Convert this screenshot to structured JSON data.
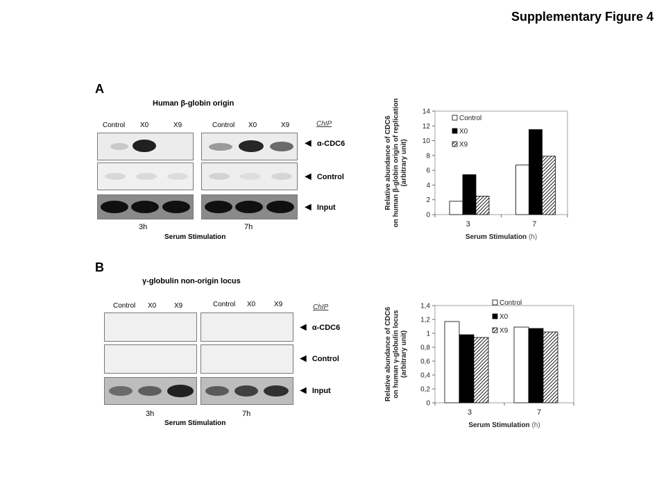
{
  "figure_title": "Supplementary Figure 4",
  "panel_a": {
    "letter": "A",
    "title": "Human β-globin origin",
    "lanes_left": [
      "Control",
      "X0",
      "X9"
    ],
    "lanes_right": [
      "Control",
      "X0",
      "X9"
    ],
    "chip_label": "ChIP",
    "rows": [
      "α-CDC6",
      "Control",
      "Input"
    ],
    "times": [
      "3h",
      "7h"
    ],
    "xlabel": "Serum Stimulation"
  },
  "panel_b": {
    "letter": "B",
    "title": "γ-globulin non-origin locus",
    "lanes_left": [
      "Control",
      "X0",
      "X9"
    ],
    "lanes_right": [
      "Control",
      "X0",
      "X9"
    ],
    "chip_label": "ChIP",
    "rows": [
      "α-CDC6",
      "Control",
      "Input"
    ],
    "times": [
      "3h",
      "7h"
    ],
    "xlabel": "Serum Stimulation"
  },
  "chart_data": [
    {
      "type": "bar",
      "categories": [
        "3",
        "7"
      ],
      "series": [
        {
          "name": "Control",
          "values": [
            1.8,
            6.7
          ],
          "fill": "white"
        },
        {
          "name": "X0",
          "values": [
            5.4,
            11.5
          ],
          "fill": "black"
        },
        {
          "name": "X9",
          "values": [
            2.5,
            7.9
          ],
          "fill": "hatch"
        }
      ],
      "ylim": [
        0,
        14
      ],
      "yticks": [
        "0",
        "2",
        "4",
        "6",
        "8",
        "10",
        "12",
        "14"
      ],
      "ylabel_lines": [
        "Relative abundance of CDC6",
        "on human β-globin origin of replication",
        "(arbitrary unit)"
      ],
      "xlabel": "Serum Stimulation",
      "xlabel_unit": "(h)",
      "legend": "top-left"
    },
    {
      "type": "bar",
      "categories": [
        "3",
        "7"
      ],
      "series": [
        {
          "name": "Control",
          "values": [
            1.17,
            1.09
          ],
          "fill": "white"
        },
        {
          "name": "X0",
          "values": [
            0.98,
            1.07
          ],
          "fill": "black"
        },
        {
          "name": "X9",
          "values": [
            0.94,
            1.02
          ],
          "fill": "hatch"
        }
      ],
      "ylim": [
        0,
        1.4
      ],
      "yticks": [
        "0",
        "0,2",
        "0,4",
        "0,6",
        "0,8",
        "1",
        "1,2",
        "1,4"
      ],
      "ylabel_lines": [
        "Relative abundance of CDC6",
        "on human γ-globulin locus",
        "(arbitrary unit)"
      ],
      "xlabel": "Serum Stimulation",
      "xlabel_unit": "(h)",
      "legend": "top-center"
    }
  ]
}
